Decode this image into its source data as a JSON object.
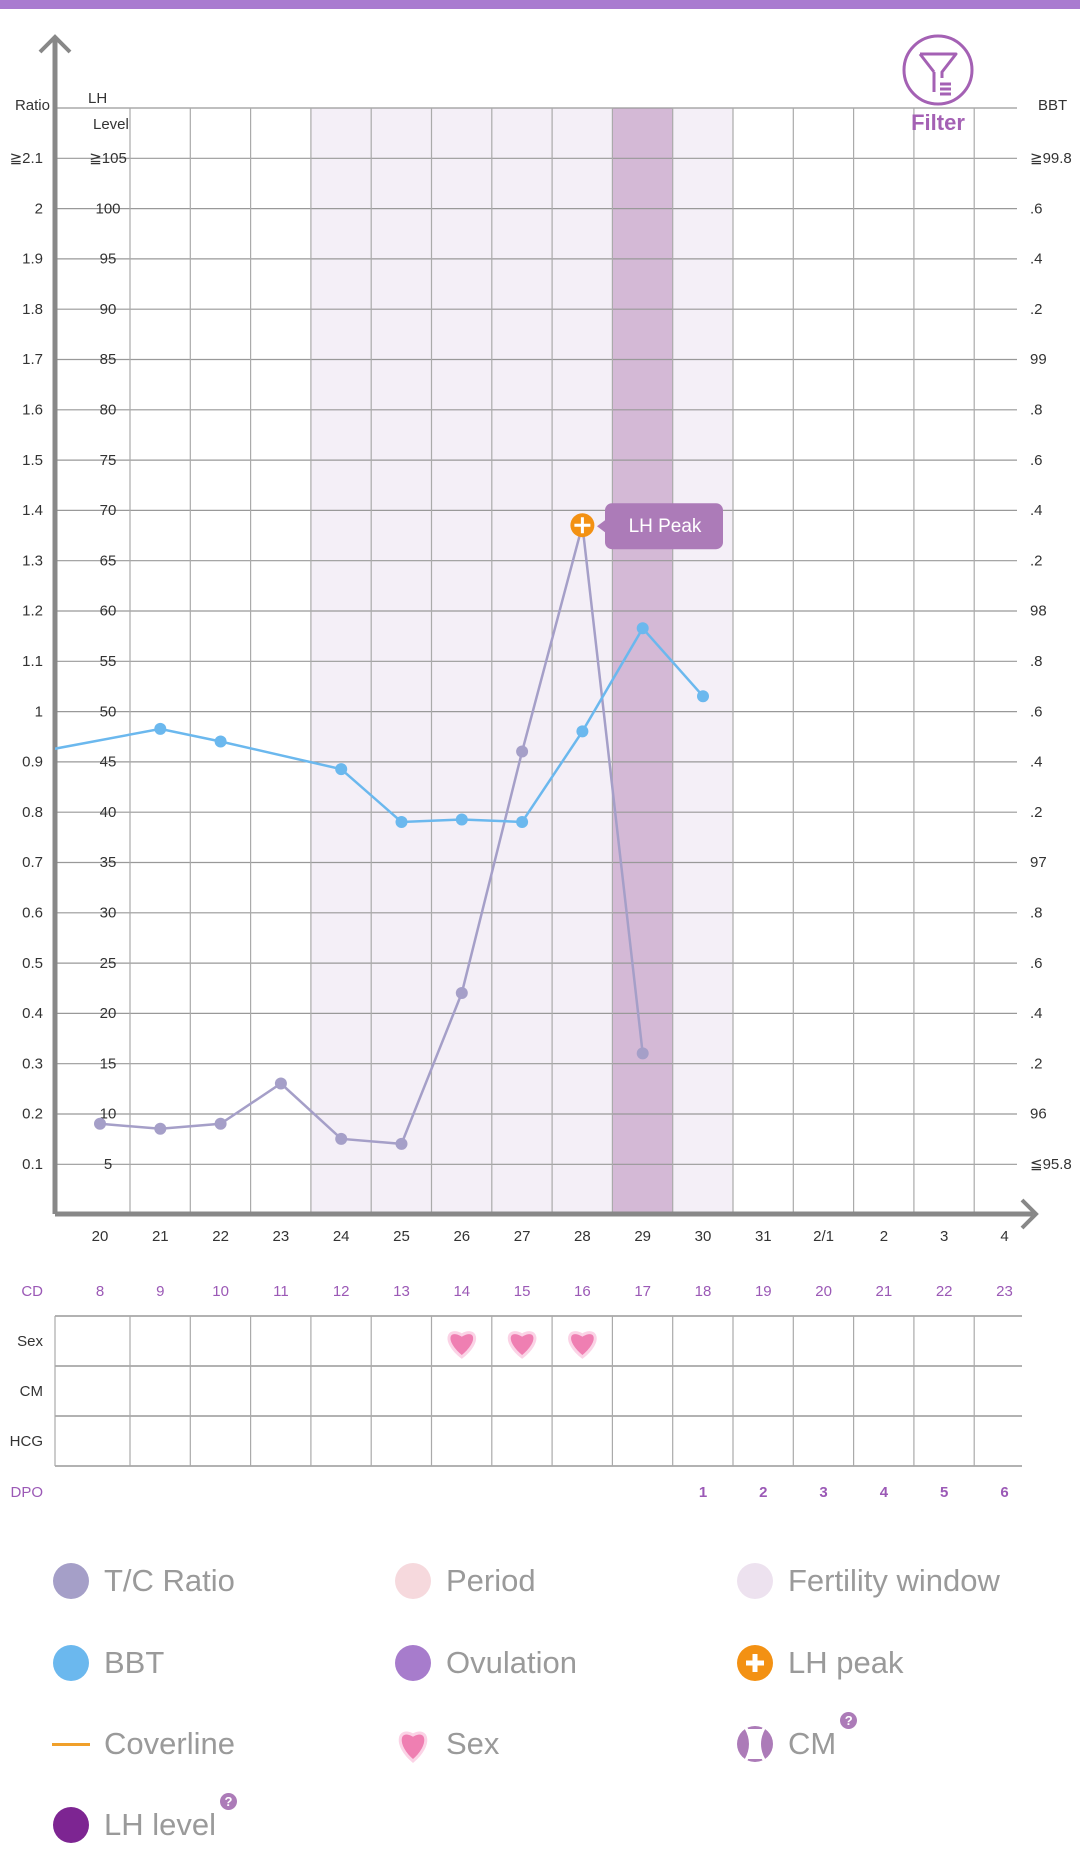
{
  "colors": {
    "accent": "#a97bd0",
    "tc_ratio": "#a59fc8",
    "bbt": "#6bb8ee",
    "lh_peak": "#f39113",
    "fertile": "#f4eff7",
    "ovulation": "#d4b9d6",
    "tooltip": "#ac7bb8",
    "cd": "#9b59b6",
    "heart": "#ef7fb2"
  },
  "filter": {
    "label": "Filter",
    "icon": "filter-icon"
  },
  "tooltip": {
    "label": "LH Peak"
  },
  "chart_data": {
    "type": "line",
    "x_labels": [
      "20",
      "21",
      "22",
      "23",
      "24",
      "25",
      "26",
      "27",
      "28",
      "29",
      "30",
      "31",
      "2/1",
      "2",
      "3",
      "4"
    ],
    "left_axis_title": "Ratio",
    "lh_axis_title_1": "LH",
    "lh_axis_title_2": "Level",
    "right_axis_title": "BBT",
    "ratio_ticks": [
      "≧2.1",
      "2",
      "1.9",
      "1.8",
      "1.7",
      "1.6",
      "1.5",
      "1.4",
      "1.3",
      "1.2",
      "1.1",
      "1",
      "0.9",
      "0.8",
      "0.7",
      "0.6",
      "0.5",
      "0.4",
      "0.3",
      "0.2",
      "0.1"
    ],
    "lh_ticks": [
      "≧105",
      "100",
      "95",
      "90",
      "85",
      "80",
      "75",
      "70",
      "65",
      "60",
      "55",
      "50",
      "45",
      "40",
      "35",
      "30",
      "25",
      "20",
      "15",
      "10",
      "5"
    ],
    "bbt_ticks": [
      "≧99.8",
      ".6",
      ".4",
      ".2",
      "99",
      ".8",
      ".6",
      ".4",
      ".2",
      "98",
      ".8",
      ".6",
      ".4",
      ".2",
      "97",
      ".8",
      ".6",
      ".4",
      ".2",
      "96",
      "≦95.8"
    ],
    "ratio_range": [
      0.1,
      2.1
    ],
    "bbt_range": [
      95.8,
      99.8
    ],
    "series": [
      {
        "name": "T/C Ratio",
        "values": [
          0.18,
          0.17,
          0.18,
          0.26,
          0.15,
          0.14,
          0.44,
          0.92,
          1.37,
          0.32,
          null,
          null,
          null,
          null,
          null,
          null
        ]
      },
      {
        "name": "BBT",
        "previous_value": 97.44,
        "values": [
          null,
          97.53,
          97.48,
          null,
          97.37,
          97.16,
          97.17,
          97.16,
          97.52,
          97.93,
          97.66,
          null,
          null,
          null,
          null,
          null
        ]
      }
    ],
    "fertility_window": [
      "24",
      "30"
    ],
    "ovulation_day": "29",
    "lh_peak_day": "28",
    "cd_label": "CD",
    "cd": [
      "8",
      "9",
      "10",
      "11",
      "12",
      "13",
      "14",
      "15",
      "16",
      "17",
      "18",
      "19",
      "20",
      "21",
      "22",
      "23"
    ],
    "rows": [
      "Sex",
      "CM",
      "HCG"
    ],
    "sex_days": [
      "26",
      "27",
      "28"
    ],
    "dpo_label": "DPO",
    "dpo": [
      "",
      "",
      "",
      "",
      "",
      "",
      "",
      "",
      "",
      "",
      "1",
      "2",
      "3",
      "4",
      "5",
      "6"
    ]
  },
  "legend": [
    {
      "label": "T/C Ratio",
      "icon": "tc-ratio-dot"
    },
    {
      "label": "Period",
      "icon": "period-dot"
    },
    {
      "label": "Fertility window",
      "icon": "fertility-window-dot"
    },
    {
      "label": "BBT",
      "icon": "bbt-dot"
    },
    {
      "label": "Ovulation",
      "icon": "ovulation-dot"
    },
    {
      "label": "LH peak",
      "icon": "lh-peak-icon"
    },
    {
      "label": "Coverline",
      "icon": "coverline-icon"
    },
    {
      "label": "Sex",
      "icon": "heart-icon"
    },
    {
      "label": "CM",
      "icon": "cm-icon",
      "help": "?"
    },
    {
      "label": "LH level",
      "icon": "lh-level-dot",
      "help": "?"
    }
  ]
}
